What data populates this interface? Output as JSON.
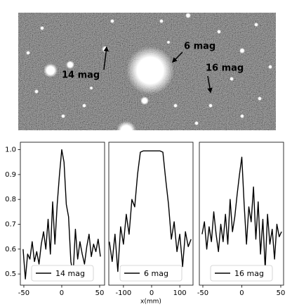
{
  "image": {
    "annotations": [
      "6 mag",
      "14 mag",
      "16 mag"
    ]
  },
  "chart_data": [
    {
      "type": "line",
      "x": [
        -51,
        -48,
        -45,
        -42,
        -39,
        -36,
        -33,
        -30,
        -27,
        -24,
        -21,
        -18,
        -15,
        -12,
        -9,
        -6,
        -3,
        0,
        3,
        6,
        9,
        12,
        15,
        18,
        21,
        24,
        27,
        30,
        33,
        36,
        39,
        42,
        45,
        48,
        51
      ],
      "series": [
        {
          "name": "14 mag",
          "color": "#000000",
          "values": [
            0.6,
            0.48,
            0.58,
            0.56,
            0.63,
            0.55,
            0.59,
            0.54,
            0.62,
            0.67,
            0.6,
            0.72,
            0.58,
            0.79,
            0.62,
            0.78,
            0.9,
            1.0,
            0.95,
            0.78,
            0.73,
            0.55,
            0.5,
            0.68,
            0.56,
            0.63,
            0.58,
            0.54,
            0.61,
            0.66,
            0.57,
            0.62,
            0.59,
            0.64,
            0.57
          ]
        }
      ],
      "xlim": [
        -54.6,
        56.5
      ],
      "xticks": [
        -50,
        0,
        50
      ],
      "ylim": [
        0.455,
        1.03
      ],
      "yticks": [
        0.5,
        0.6,
        0.7,
        0.8,
        0.9,
        {
          "value": 1,
          "label": "1.0"
        }
      ],
      "legend": "lower center"
    },
    {
      "type": "line",
      "x": [
        -150,
        -140,
        -130,
        -120,
        -110,
        -100,
        -90,
        -80,
        -70,
        -60,
        -50,
        -40,
        -30,
        -20,
        -10,
        0,
        10,
        20,
        30,
        40,
        50,
        60,
        70,
        80,
        90,
        100,
        110,
        120,
        130,
        140
      ],
      "series": [
        {
          "name": "6 mag",
          "color": "#000000",
          "values": [
            0.63,
            0.55,
            0.66,
            0.51,
            0.69,
            0.62,
            0.74,
            0.66,
            0.8,
            0.77,
            0.9,
            0.99,
            0.995,
            0.995,
            0.995,
            0.995,
            0.995,
            0.995,
            0.995,
            0.99,
            0.88,
            0.78,
            0.64,
            0.71,
            0.59,
            0.66,
            0.53,
            0.67,
            0.61,
            0.64
          ]
        }
      ],
      "xlim": [
        -152,
        147
      ],
      "xticks": [
        -100,
        0,
        100
      ],
      "xlabel": "x(mm)",
      "ylim": [
        0.455,
        1.03
      ],
      "legend": "lower center"
    },
    {
      "type": "line",
      "x": [
        -51,
        -48,
        -45,
        -42,
        -39,
        -36,
        -33,
        -30,
        -27,
        -24,
        -21,
        -18,
        -15,
        -12,
        -9,
        -6,
        -3,
        0,
        3,
        6,
        9,
        12,
        15,
        18,
        21,
        24,
        27,
        30,
        33,
        36,
        39,
        42,
        45,
        48,
        51
      ],
      "series": [
        {
          "name": "16 mag",
          "color": "#000000",
          "values": [
            0.66,
            0.71,
            0.6,
            0.69,
            0.63,
            0.75,
            0.66,
            0.59,
            0.7,
            0.63,
            0.74,
            0.62,
            0.8,
            0.67,
            0.73,
            0.82,
            0.9,
            0.97,
            0.78,
            0.62,
            0.77,
            0.71,
            0.85,
            0.64,
            0.79,
            0.58,
            0.72,
            0.52,
            0.74,
            0.62,
            0.68,
            0.56,
            0.7,
            0.65,
            0.67
          ]
        }
      ],
      "xlim": [
        -54.5,
        53.6
      ],
      "xticks": [
        -50,
        0,
        50
      ],
      "ylim": [
        0.455,
        1.03
      ],
      "legend": "lower center"
    }
  ]
}
